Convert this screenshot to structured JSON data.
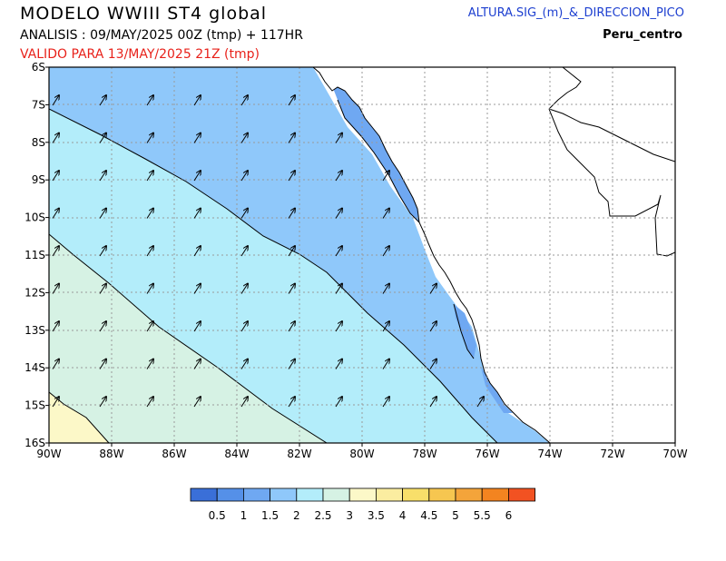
{
  "header": {
    "title": "MODELO WWIII ST4 global",
    "analysis": "ANALISIS : 09/MAY/2025 00Z  (tmp) + 117HR",
    "valid": "VALIDO PARA  13/MAY/2025 21Z  (tmp)",
    "parameter": "ALTURA.SIG_(m)_&_DIRECCION_PICO",
    "region": "Peru_centro"
  },
  "map": {
    "lon_range": [
      -90,
      -70
    ],
    "lat_range": [
      -16,
      -6
    ],
    "lat_labels": [
      "6S",
      "7S",
      "8S",
      "9S",
      "10S",
      "11S",
      "12S",
      "13S",
      "14S",
      "15S",
      "16S"
    ],
    "lon_labels": [
      "90W",
      "88W",
      "86W",
      "84W",
      "82W",
      "80W",
      "78W",
      "76W",
      "74W",
      "72W",
      "70W"
    ],
    "grid": true
  },
  "legend": {
    "colors": [
      "#3a6fd8",
      "#5590e8",
      "#6fa8f2",
      "#8fc8fa",
      "#b3edfa",
      "#d6f2e4",
      "#fcf8c8",
      "#fbeda0",
      "#f8df6a",
      "#f6c650",
      "#f4a43a",
      "#f38420",
      "#f25222"
    ],
    "labels": [
      "0.5",
      "1",
      "1.5",
      "2",
      "2.5",
      "3",
      "3.5",
      "4",
      "4.5",
      "5",
      "5.5",
      "6"
    ]
  }
}
